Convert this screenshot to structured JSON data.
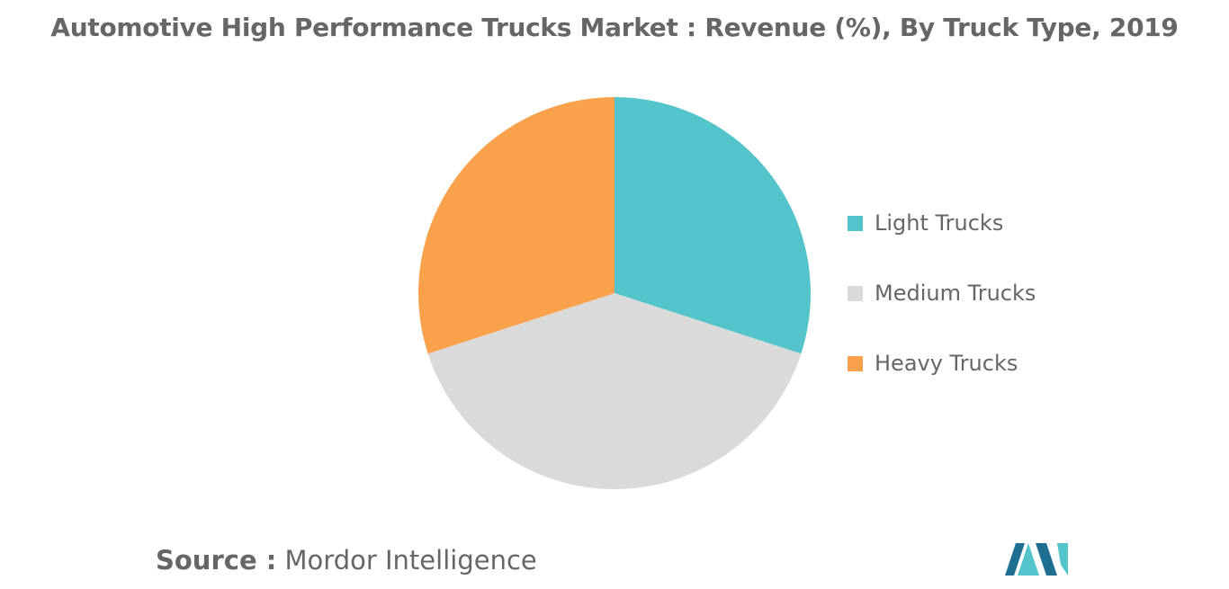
{
  "chart_data": {
    "type": "pie",
    "title": "Automotive High Performance Trucks Market : Revenue (%), By Truck Type, 2019",
    "categories": [
      "Light Trucks",
      "Medium Trucks",
      "Heavy Trucks"
    ],
    "values": [
      30,
      40,
      30
    ],
    "colors": [
      "#52C4CA",
      "#DADADA",
      "#FAA24B"
    ],
    "legend_position": "right",
    "start_angle_deg": 0,
    "direction": "clockwise"
  },
  "source": {
    "key": "Source :",
    "value": "Mordor Intelligence"
  },
  "logo": {
    "icon": "mordor-intelligence-logo-icon",
    "colors": [
      "#1F6F93",
      "#52C4CA"
    ]
  }
}
